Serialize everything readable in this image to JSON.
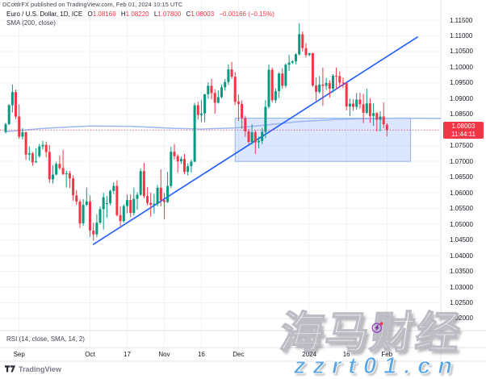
{
  "header": {
    "publish_line": "DCottlrFX published on TradingView.com, Feb 01, 2024 10:15 UTC"
  },
  "legend": {
    "symbol_title": "Euro / U.S. Dollar, 1D, ICE",
    "ohlc": {
      "o_label": "O",
      "o": "1.08169",
      "h_label": "H",
      "h": "1.08220",
      "l_label": "L",
      "l": "1.07800",
      "c_label": "C",
      "c": "1.08003",
      "change": "−0.00166 (−0.15%)"
    },
    "indicator_label": "SMA (200, close)"
  },
  "rsi": {
    "label": "RSI (14, close, SMA, 14, 2)"
  },
  "price_tag": {
    "price": "1.08003",
    "countdown": "11:44:11"
  },
  "footer": {
    "logo_text": "TradingView"
  },
  "watermark": {
    "main": "海马财经",
    "url": "zzrt01.cn"
  },
  "colors": {
    "up": "#089981",
    "down": "#F23645",
    "trend": "#2962FF",
    "sma": "#9fb6f3",
    "rect_fill": "rgba(41,98,255,0.16)",
    "rect_border": "#8fb4f2",
    "grid": "#f0f3fa",
    "axis_border": "#e0e3eb",
    "tag": "#F23645",
    "text": "#131722",
    "muted": "#787b86",
    "current_line": "#F23645",
    "watermark_blue": "#58a6e4"
  },
  "chart_data": {
    "type": "candlestick",
    "title": "Euro / U.S. Dollar",
    "interval": "1D",
    "exchange": "ICE",
    "ylim": [
      1.016,
      1.117
    ],
    "grid": true,
    "price_axis_ticks": [
      "1.11500",
      "1.11000",
      "1.10500",
      "1.10000",
      "1.09500",
      "1.09000",
      "1.08500",
      "1.07500",
      "1.07000",
      "1.06500",
      "1.06000",
      "1.05500",
      "1.05000",
      "1.04500",
      "1.04000",
      "1.03500",
      "1.03000",
      "1.02500",
      "1.02000"
    ],
    "hidden_tick_behind_tag": "1.08000",
    "time_axis_ticks": [
      {
        "label": "Sep",
        "index": 4
      },
      {
        "label": "Oct",
        "index": 25
      },
      {
        "label": "17",
        "index": 36
      },
      {
        "label": "Nov",
        "index": 47
      },
      {
        "label": "16",
        "index": 58
      },
      {
        "label": "Dec",
        "index": 69
      },
      {
        "label": "2024",
        "index": 90
      },
      {
        "label": "16",
        "index": 101
      },
      {
        "label": "Feb",
        "index": 113
      }
    ],
    "current_price": 1.08003,
    "countdown": "11:44:11",
    "overlays": {
      "sma_200": {
        "points": [
          [
            0,
            1.0795
          ],
          [
            12,
            1.0806
          ],
          [
            25,
            1.0813
          ],
          [
            37,
            1.0812
          ],
          [
            49,
            1.0806
          ],
          [
            58,
            1.0803
          ],
          [
            68,
            1.0807
          ],
          [
            78,
            1.0817
          ],
          [
            87,
            1.0827
          ],
          [
            97,
            1.0833
          ],
          [
            106,
            1.0836
          ],
          [
            116,
            1.0838
          ],
          [
            129,
            1.0837
          ]
        ]
      },
      "trendline": {
        "from_index": 26,
        "from_price": 1.0436,
        "to_index": 122,
        "to_price": 1.1096
      },
      "rectangle": {
        "from_index": 68,
        "to_index": 120,
        "top": 1.0838,
        "bottom": 1.07
      }
    },
    "candles": [
      [
        "Aug 28",
        1.0794,
        1.0823,
        1.0789,
        1.0819
      ],
      [
        "Aug 29",
        1.0819,
        1.0883,
        1.0816,
        1.0879
      ],
      [
        "Aug 30",
        1.0879,
        1.0945,
        1.0856,
        1.0921
      ],
      [
        "Aug 31",
        1.0921,
        1.0929,
        1.0835,
        1.0843
      ],
      [
        "Sep 1",
        1.0843,
        1.0882,
        1.0772,
        1.0779
      ],
      [
        "Sep 4",
        1.0779,
        1.0806,
        1.077,
        1.0793
      ],
      [
        "Sep 5",
        1.0793,
        1.0795,
        1.0705,
        1.0722
      ],
      [
        "Sep 6",
        1.0722,
        1.0748,
        1.0703,
        1.0726
      ],
      [
        "Sep 7",
        1.0726,
        1.073,
        1.0686,
        1.0697
      ],
      [
        "Sep 8",
        1.0697,
        1.0742,
        1.0696,
        1.07
      ],
      [
        "Sep 11",
        1.0717,
        1.0756,
        1.0712,
        1.0748
      ],
      [
        "Sep 12",
        1.0748,
        1.0766,
        1.0738,
        1.0753
      ],
      [
        "Sep 13",
        1.0753,
        1.0763,
        1.0713,
        1.073
      ],
      [
        "Sep 14",
        1.073,
        1.0752,
        1.0632,
        1.0643
      ],
      [
        "Sep 15",
        1.0643,
        1.0688,
        1.063,
        1.0658
      ],
      [
        "Sep 18",
        1.0658,
        1.0699,
        1.0656,
        1.0692
      ],
      [
        "Sep 19",
        1.0692,
        1.0718,
        1.0674,
        1.0679
      ],
      [
        "Sep 20",
        1.0679,
        1.0737,
        1.0657,
        1.066
      ],
      [
        "Sep 21",
        1.066,
        1.0671,
        1.0617,
        1.0662
      ],
      [
        "Sep 22",
        1.0662,
        1.067,
        1.0615,
        1.0646
      ],
      [
        "Sep 25",
        1.0646,
        1.0656,
        1.0575,
        1.0592
      ],
      [
        "Sep 26",
        1.0592,
        1.0609,
        1.0562,
        1.0572
      ],
      [
        "Sep 27",
        1.0572,
        1.0579,
        1.0488,
        1.0503
      ],
      [
        "Sep 28",
        1.0503,
        1.058,
        1.0495,
        1.0562
      ],
      [
        "Sep 29",
        1.0562,
        1.0617,
        1.0557,
        1.0573
      ],
      [
        "Oct 2",
        1.0573,
        1.0592,
        1.046,
        1.048
      ],
      [
        "Oct 3",
        1.048,
        1.0505,
        1.0448,
        1.0468
      ],
      [
        "Oct 4",
        1.0468,
        1.0532,
        1.0459,
        1.0505
      ],
      [
        "Oct 5",
        1.0505,
        1.0556,
        1.05,
        1.0548
      ],
      [
        "Oct 6",
        1.0548,
        1.06,
        1.0483,
        1.0586
      ],
      [
        "Oct 9",
        1.0566,
        1.059,
        1.0521,
        1.0567
      ],
      [
        "Oct 10",
        1.0567,
        1.061,
        1.056,
        1.0606
      ],
      [
        "Oct 11",
        1.0606,
        1.0634,
        1.0596,
        1.0622
      ],
      [
        "Oct 12",
        1.0622,
        1.064,
        1.0525,
        1.0529
      ],
      [
        "Oct 13",
        1.0529,
        1.0558,
        1.0495,
        1.051
      ],
      [
        "Oct 16",
        1.051,
        1.0564,
        1.0505,
        1.0558
      ],
      [
        "Oct 17",
        1.0558,
        1.0595,
        1.0535,
        1.0577
      ],
      [
        "Oct 18",
        1.0577,
        1.0595,
        1.0522,
        1.0536
      ],
      [
        "Oct 19",
        1.0536,
        1.0617,
        1.0527,
        1.0581
      ],
      [
        "Oct 20",
        1.0581,
        1.0602,
        1.0546,
        1.0594
      ],
      [
        "Oct 23",
        1.0594,
        1.0678,
        1.059,
        1.0669
      ],
      [
        "Oct 24",
        1.0669,
        1.0695,
        1.0583,
        1.059
      ],
      [
        "Oct 25",
        1.059,
        1.0618,
        1.056,
        1.0568
      ],
      [
        "Oct 26",
        1.0568,
        1.0601,
        1.0524,
        1.0562
      ],
      [
        "Oct 27",
        1.0562,
        1.0597,
        1.0534,
        1.0565
      ],
      [
        "Oct 30",
        1.0565,
        1.0625,
        1.0557,
        1.0616
      ],
      [
        "Oct 31",
        1.0616,
        1.0675,
        1.0557,
        1.0576
      ],
      [
        "Nov 1",
        1.0576,
        1.06,
        1.0516,
        1.0571
      ],
      [
        "Nov 2",
        1.0571,
        1.0667,
        1.0568,
        1.0622
      ],
      [
        "Nov 3",
        1.0622,
        1.0747,
        1.0615,
        1.0731
      ],
      [
        "Nov 6",
        1.0731,
        1.0756,
        1.0706,
        1.0717
      ],
      [
        "Nov 7",
        1.0717,
        1.0723,
        1.0664,
        1.07
      ],
      [
        "Nov 8",
        1.07,
        1.0716,
        1.0692,
        1.0708
      ],
      [
        "Nov 9",
        1.0708,
        1.0724,
        1.0659,
        1.0667
      ],
      [
        "Nov 10",
        1.0667,
        1.0694,
        1.0655,
        1.0685
      ],
      [
        "Nov 13",
        1.0685,
        1.0706,
        1.0664,
        1.0699
      ],
      [
        "Nov 14",
        1.0699,
        1.0887,
        1.0698,
        1.0879
      ],
      [
        "Nov 15",
        1.0879,
        1.089,
        1.0833,
        1.0848
      ],
      [
        "Nov 16",
        1.0848,
        1.0896,
        1.0826,
        1.0853
      ],
      [
        "Nov 17",
        1.0853,
        1.0915,
        1.0825,
        1.0914
      ],
      [
        "Nov 20",
        1.0914,
        1.0952,
        1.09,
        1.0941
      ],
      [
        "Nov 21",
        1.0941,
        1.0963,
        1.0898,
        1.0918
      ],
      [
        "Nov 22",
        1.0918,
        1.093,
        1.0852,
        1.0887
      ],
      [
        "Nov 23",
        1.0887,
        1.0926,
        1.0884,
        1.0905
      ],
      [
        "Nov 24",
        1.0905,
        1.0945,
        1.0901,
        1.0936
      ],
      [
        "Nov 27",
        1.0936,
        1.0963,
        1.0925,
        1.0953
      ],
      [
        "Nov 28",
        1.0953,
        1.1009,
        1.0944,
        1.0993
      ],
      [
        "Nov 29",
        1.0993,
        1.1017,
        1.0963,
        1.097
      ],
      [
        "Nov 30",
        1.097,
        1.0985,
        1.0879,
        1.089
      ],
      [
        "Dec 1",
        1.089,
        1.0913,
        1.0829,
        1.0883
      ],
      [
        "Dec 4",
        1.0883,
        1.0895,
        1.0804,
        1.0838
      ],
      [
        "Dec 5",
        1.0838,
        1.0846,
        1.0779,
        1.0796
      ],
      [
        "Dec 6",
        1.0796,
        1.0804,
        1.0756,
        1.0762
      ],
      [
        "Dec 7",
        1.0762,
        1.0818,
        1.0755,
        1.0793
      ],
      [
        "Dec 8",
        1.0793,
        1.08,
        1.0724,
        1.0761
      ],
      [
        "Dec 11",
        1.0761,
        1.0779,
        1.0742,
        1.0765
      ],
      [
        "Dec 12",
        1.0765,
        1.0807,
        1.0755,
        1.0794
      ],
      [
        "Dec 13",
        1.0794,
        1.0895,
        1.0774,
        1.0874
      ],
      [
        "Dec 14",
        1.0874,
        1.1009,
        1.0868,
        1.0992
      ],
      [
        "Dec 15",
        1.0992,
        1.0999,
        1.0888,
        1.0895
      ],
      [
        "Dec 18",
        1.0895,
        1.0933,
        1.0886,
        1.0924
      ],
      [
        "Dec 19",
        1.0924,
        1.0985,
        1.0903,
        1.098
      ],
      [
        "Dec 20",
        1.098,
        1.0997,
        1.0931,
        1.0941
      ],
      [
        "Dec 21",
        1.0941,
        1.1012,
        1.0935,
        1.1008
      ],
      [
        "Dec 22",
        1.1008,
        1.104,
        1.0989,
        1.1015
      ],
      [
        "Dec 25",
        1.1015,
        1.1022,
        1.101,
        1.1019
      ],
      [
        "Dec 26",
        1.1019,
        1.1045,
        1.101,
        1.1041
      ],
      [
        "Dec 27",
        1.1041,
        1.114,
        1.1038,
        1.1105
      ],
      [
        "Dec 28",
        1.1105,
        1.1114,
        1.105,
        1.1061
      ],
      [
        "Dec 29",
        1.1061,
        1.1076,
        1.1031,
        1.1039
      ],
      [
        "Jan 1",
        1.1039,
        1.1046,
        1.1035,
        1.1045
      ],
      [
        "Jan 2",
        1.1045,
        1.1046,
        1.0937,
        1.0942
      ],
      [
        "Jan 3",
        1.0942,
        1.0968,
        1.0893,
        1.0922
      ],
      [
        "Jan 4",
        1.0922,
        1.0972,
        1.0916,
        1.0945
      ],
      [
        "Jan 5",
        1.0945,
        1.0999,
        1.0877,
        1.0941
      ],
      [
        "Jan 8",
        1.0941,
        1.0966,
        1.0928,
        1.095
      ],
      [
        "Jan 9",
        1.095,
        1.0959,
        1.0903,
        1.0932
      ],
      [
        "Jan 10",
        1.0932,
        1.0978,
        1.092,
        1.0973
      ],
      [
        "Jan 11",
        1.0973,
        1.0999,
        1.093,
        1.0972
      ],
      [
        "Jan 12",
        1.0972,
        1.0987,
        1.0936,
        1.0951
      ],
      [
        "Jan 15",
        1.0951,
        1.0967,
        1.0934,
        1.095
      ],
      [
        "Jan 16",
        1.095,
        1.0952,
        1.0863,
        1.0875
      ],
      [
        "Jan 17",
        1.0875,
        1.09,
        1.0845,
        1.0884
      ],
      [
        "Jan 18",
        1.0884,
        1.0898,
        1.0862,
        1.0874
      ],
      [
        "Jan 19",
        1.0874,
        1.0918,
        1.0865,
        1.0897
      ],
      [
        "Jan 22",
        1.0897,
        1.0919,
        1.0868,
        1.0882
      ],
      [
        "Jan 23",
        1.0882,
        1.0915,
        1.0822,
        1.0855
      ],
      [
        "Jan 24",
        1.0855,
        1.0932,
        1.0851,
        1.0885
      ],
      [
        "Jan 25",
        1.0885,
        1.0901,
        1.0823,
        1.0845
      ],
      [
        "Jan 26",
        1.0845,
        1.0885,
        1.0813,
        1.0854
      ],
      [
        "Jan 29",
        1.0854,
        1.0858,
        1.0795,
        1.0833
      ],
      [
        "Jan 30",
        1.0833,
        1.086,
        1.0796,
        1.0843
      ],
      [
        "Jan 31",
        1.0843,
        1.0888,
        1.0806,
        1.0818
      ],
      [
        "Feb 1",
        1.08169,
        1.0822,
        1.078,
        1.08003
      ]
    ]
  }
}
